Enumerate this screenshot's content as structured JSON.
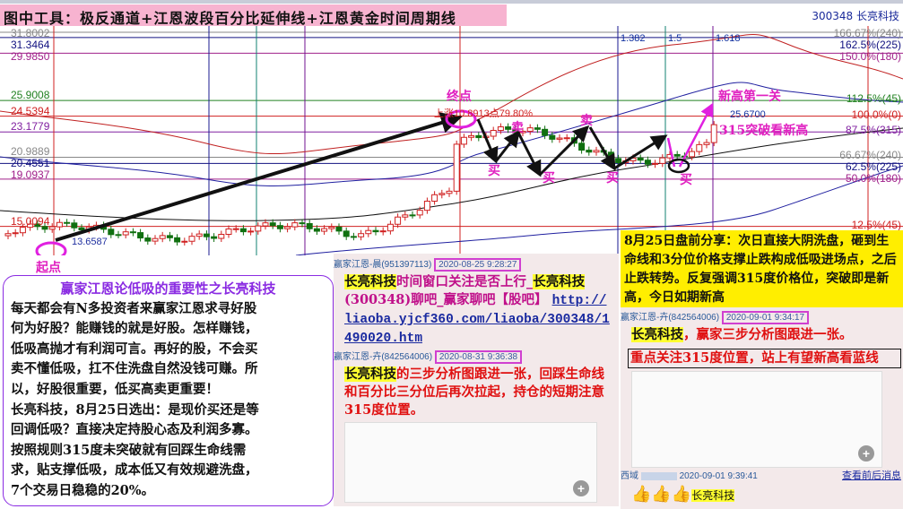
{
  "header": {
    "title": "图中工具：极反通道+江恩波段百分比延伸线+江恩黄金时间周期线",
    "stock": "300348 长亮科技"
  },
  "chart": {
    "price_labels": [
      {
        "v": "31.8002",
        "p": 31.8002,
        "c": "#888888"
      },
      {
        "v": "31.3464",
        "p": 31.3464,
        "c": "#101080"
      },
      {
        "v": "29.9850",
        "p": 29.985,
        "c": "#a0208a"
      },
      {
        "v": "25.9008",
        "p": 25.9008,
        "c": "#208020"
      },
      {
        "v": "24.5394",
        "p": 24.5394,
        "c": "#d02020"
      },
      {
        "v": "23.1779",
        "p": 23.1779,
        "c": "#8020a0"
      },
      {
        "v": "20.9889",
        "p": 20.9889,
        "c": "#888888"
      },
      {
        "v": "20.4551",
        "p": 20.4551,
        "c": "#101080"
      },
      {
        "v": "19.0937",
        "p": 19.0937,
        "c": "#a0208a"
      },
      {
        "v": "15.0094",
        "p": 15.0094,
        "c": "#d02020"
      }
    ],
    "pct_labels": [
      {
        "v": "166.67%(240)",
        "p": 31.8002,
        "c": "#888888"
      },
      {
        "v": "162.5%(225)",
        "p": 31.3464,
        "c": "#101080"
      },
      {
        "v": "150.0%(180)",
        "p": 29.985,
        "c": "#a0208a"
      },
      {
        "v": "112.5%(45)",
        "p": 25.9008,
        "c": "#208020"
      },
      {
        "v": "100.0%(0)",
        "p": 24.5394,
        "c": "#d02020"
      },
      {
        "v": "87.5%(315)",
        "p": 23.1779,
        "c": "#8020a0"
      },
      {
        "v": "66.67%(240)",
        "p": 20.9889,
        "c": "#888888"
      },
      {
        "v": "62.5%(225)",
        "p": 20.4551,
        "c": "#101080"
      },
      {
        "v": "50.0%(180)",
        "p": 19.0937,
        "c": "#a0208a"
      },
      {
        "v": "12.5%(45)",
        "p": 15.0094,
        "c": "#d02020"
      }
    ],
    "low_label": "13.6587",
    "high_label": "上涨10.8913点79.80%",
    "level_label": "25.6700",
    "fib_time": [
      "1.382",
      "1.5",
      "1.618"
    ],
    "annotations": {
      "start": "起点",
      "end": "终点",
      "sell": "卖",
      "buy": "买",
      "new_high": "新高第一关",
      "break": "315突破看新高"
    }
  },
  "left_box": {
    "heading": "赢家江恩论低吸的重要性之长亮科技",
    "lines": [
      "每天都会有N多投资者来赢家江恩求寻好股",
      "何为好股？能赚钱的就是好股。怎样赚钱，",
      "低吸高抛才有利润可言。再好的股，不会买",
      "卖不懂低吸，扛不住洗盘自然没钱可赚。所",
      "以，好股很重要，低买高卖更重要！",
      "长亮科技，8月25日选出：是现价买还是等",
      "回调低吸？直接决定持股心态及利润多寡。",
      "按照规则315度未突破就有回踩生命线需",
      "求，贴支撑低吸，成本低又有效规避洗盘，",
      "7个交易日稳稳的20%。"
    ]
  },
  "mid_chat": {
    "msg1": {
      "user": "赢家江恩-晨(951397113)",
      "time": "2020-08-25 9:28:27",
      "stock": "长亮科技",
      "text": "时间窗口关注是否上行_",
      "stock2": "长亮科技",
      "text2": "(300348)聊吧_赢家聊吧【股吧】",
      "link": "http://liaoba.yjcf360.com/liaoba/300348/1490020.htm"
    },
    "msg2": {
      "user": "赢家江恩-卉(842564006)",
      "time": "2020-08-31 9:36:38",
      "stock": "长亮科技",
      "text": "的三步分析图跟进一张，回踩生命线和百分比三分位后再次拉起，持仓的短期注意315度位置。"
    }
  },
  "yellow_note": "8月25日盘前分享：次日直接大阴洗盘，砸到生命线和3分位价格支撑止跌构成低吸进场点，之后止跌转势。反复强调315度价格位，突破即是新高，今日如期新高",
  "right_chat": {
    "msg1": {
      "user": "赢家江恩-卉(842564006)",
      "time": "2020-09-01 9:34:17",
      "stock": "长亮科技",
      "text": "，赢家三步分析图跟进一张。",
      "boxed": "重点关注315度位置，站上有望新高看蓝线"
    },
    "msg2": {
      "user": "西域",
      "time": "2020-09-01 9:39:41",
      "stock": "长亮科技",
      "more_link": "查看前后消息"
    }
  },
  "icons": {
    "zoom": "magnifier-plus-icon",
    "thumbs": "thumbs-up-icon"
  }
}
